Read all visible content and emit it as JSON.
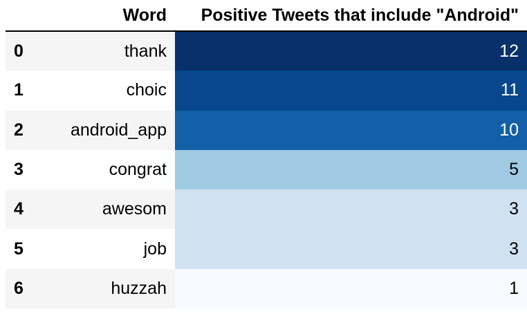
{
  "table": {
    "columns": {
      "index": "",
      "word": "Word",
      "count": "Positive Tweets that include \"Android\""
    },
    "rows": [
      {
        "index": "0",
        "word": "thank",
        "count": "12",
        "bg": "#08306b",
        "fg": "#ffffff"
      },
      {
        "index": "1",
        "word": "choic",
        "count": "11",
        "bg": "#08478d",
        "fg": "#ffffff"
      },
      {
        "index": "2",
        "word": "android_app",
        "count": "10",
        "bg": "#1460a8",
        "fg": "#ffffff"
      },
      {
        "index": "3",
        "word": "congrat",
        "count": "5",
        "bg": "#a0cae1",
        "fg": "#000000"
      },
      {
        "index": "4",
        "word": "awesom",
        "count": "3",
        "bg": "#d0e2f2",
        "fg": "#000000"
      },
      {
        "index": "5",
        "word": "job",
        "count": "3",
        "bg": "#d0e2f2",
        "fg": "#000000"
      },
      {
        "index": "6",
        "word": "huzzah",
        "count": "1",
        "bg": "#f7fbff",
        "fg": "#000000"
      }
    ]
  }
}
